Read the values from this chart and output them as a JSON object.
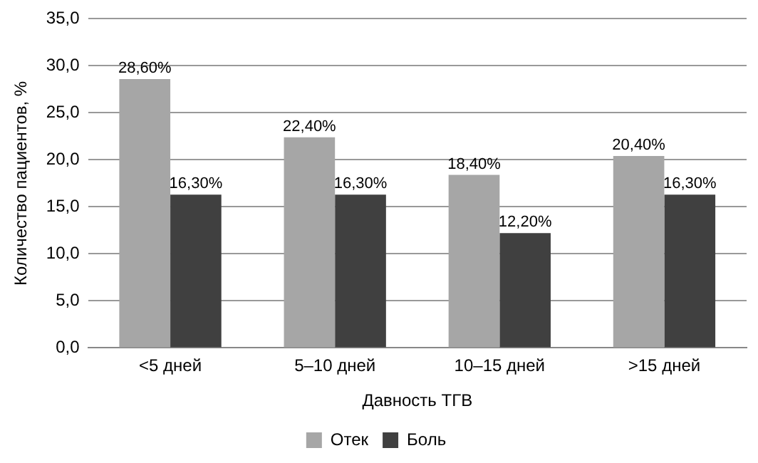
{
  "chart_data": {
    "type": "bar",
    "xlabel": "Давность ТГВ",
    "ylabel": "Количество пациентов, %",
    "categories": [
      "<5 дней",
      "5–10 дней",
      "10–15 дней",
      ">15 дней"
    ],
    "series": [
      {
        "name": "Отек",
        "color": "#a6a6a6",
        "values": [
          28.6,
          22.4,
          18.4,
          20.4
        ],
        "value_labels": [
          "28,60%",
          "22,40%",
          "18,40%",
          "20,40%"
        ]
      },
      {
        "name": "Боль",
        "color": "#404040",
        "values": [
          16.3,
          16.3,
          12.2,
          16.3
        ],
        "value_labels": [
          "16,30%",
          "16,30%",
          "12,20%",
          "16,30%"
        ]
      }
    ],
    "ylim": [
      0,
      35
    ],
    "yticks": [
      {
        "value": 0,
        "label": "0,0"
      },
      {
        "value": 5,
        "label": "5,0"
      },
      {
        "value": 10,
        "label": "10,0"
      },
      {
        "value": 15,
        "label": "15,0"
      },
      {
        "value": 20,
        "label": "20,0"
      },
      {
        "value": 25,
        "label": "25,0"
      },
      {
        "value": 30,
        "label": "30,0"
      },
      {
        "value": 35,
        "label": "35,0"
      }
    ],
    "grid": "y",
    "legend": "bottom"
  }
}
